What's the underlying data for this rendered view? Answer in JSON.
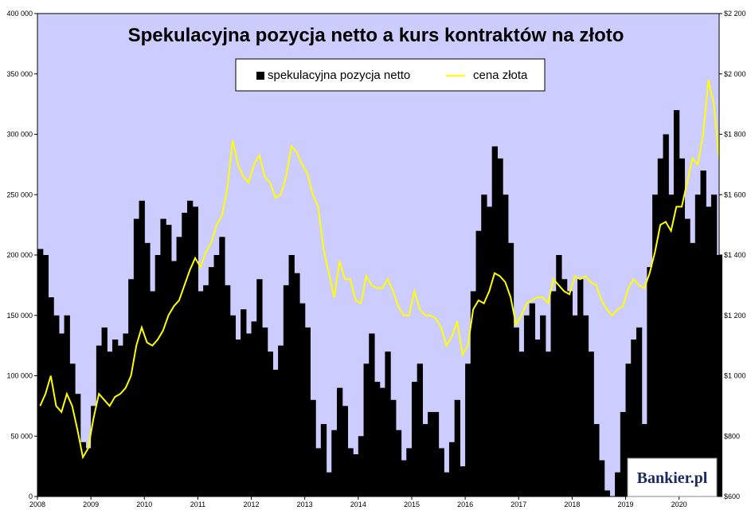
{
  "chart_data": {
    "type": "bar-line-combo",
    "title": "Spekulacyjna pozycja netto a kurs kontraktów na złoto",
    "series": [
      {
        "name": "spekulacyjna pozycja netto",
        "type": "bar",
        "axis": "left",
        "color": "#000000"
      },
      {
        "name": "cena złota",
        "type": "line",
        "axis": "right",
        "color": "#ffff00"
      }
    ],
    "legend_position": "top-center",
    "background_color": "#ccccff",
    "x_ticks": [
      "2008",
      "2009",
      "2010",
      "2011",
      "2012",
      "2013",
      "2014",
      "2015",
      "2016",
      "2017",
      "2018",
      "2019",
      "2020"
    ],
    "x_range": [
      2008,
      2020.75
    ],
    "y_left_range": [
      0,
      400000
    ],
    "y_left_ticks": [
      "0",
      "50 000",
      "100 000",
      "150 000",
      "200 000",
      "250 000",
      "300 000",
      "350 000",
      "400 000"
    ],
    "y_right_range": [
      600,
      2200
    ],
    "y_right_ticks": [
      "$600",
      "$800",
      "$1 000",
      "$1 200",
      "$1 400",
      "$1 600",
      "$1 800",
      "$2 000",
      "$2 200"
    ],
    "points": [
      [
        2008.0,
        205000,
        900
      ],
      [
        2008.1,
        200000,
        940
      ],
      [
        2008.2,
        165000,
        1000
      ],
      [
        2008.3,
        150000,
        900
      ],
      [
        2008.4,
        135000,
        880
      ],
      [
        2008.5,
        150000,
        940
      ],
      [
        2008.6,
        110000,
        900
      ],
      [
        2008.7,
        85000,
        820
      ],
      [
        2008.8,
        45000,
        730
      ],
      [
        2008.9,
        40000,
        760
      ],
      [
        2009.0,
        75000,
        860
      ],
      [
        2009.1,
        125000,
        940
      ],
      [
        2009.2,
        140000,
        920
      ],
      [
        2009.3,
        120000,
        900
      ],
      [
        2009.4,
        130000,
        930
      ],
      [
        2009.5,
        125000,
        940
      ],
      [
        2009.6,
        135000,
        960
      ],
      [
        2009.7,
        180000,
        1000
      ],
      [
        2009.8,
        230000,
        1100
      ],
      [
        2009.9,
        245000,
        1160
      ],
      [
        2010.0,
        210000,
        1110
      ],
      [
        2010.1,
        170000,
        1100
      ],
      [
        2010.2,
        200000,
        1120
      ],
      [
        2010.3,
        230000,
        1150
      ],
      [
        2010.4,
        225000,
        1200
      ],
      [
        2010.5,
        195000,
        1230
      ],
      [
        2010.6,
        215000,
        1250
      ],
      [
        2010.7,
        235000,
        1300
      ],
      [
        2010.8,
        245000,
        1350
      ],
      [
        2010.9,
        240000,
        1390
      ],
      [
        2011.0,
        170000,
        1360
      ],
      [
        2011.1,
        175000,
        1410
      ],
      [
        2011.2,
        190000,
        1440
      ],
      [
        2011.3,
        200000,
        1500
      ],
      [
        2011.4,
        215000,
        1530
      ],
      [
        2011.5,
        175000,
        1620
      ],
      [
        2011.6,
        150000,
        1780
      ],
      [
        2011.7,
        130000,
        1700
      ],
      [
        2011.8,
        155000,
        1660
      ],
      [
        2011.9,
        135000,
        1640
      ],
      [
        2012.0,
        145000,
        1700
      ],
      [
        2012.1,
        180000,
        1730
      ],
      [
        2012.2,
        140000,
        1660
      ],
      [
        2012.3,
        120000,
        1640
      ],
      [
        2012.4,
        105000,
        1590
      ],
      [
        2012.5,
        125000,
        1600
      ],
      [
        2012.6,
        175000,
        1660
      ],
      [
        2012.7,
        200000,
        1760
      ],
      [
        2012.8,
        185000,
        1740
      ],
      [
        2012.9,
        160000,
        1700
      ],
      [
        2013.0,
        140000,
        1670
      ],
      [
        2013.1,
        80000,
        1600
      ],
      [
        2013.2,
        40000,
        1560
      ],
      [
        2013.3,
        60000,
        1420
      ],
      [
        2013.4,
        20000,
        1340
      ],
      [
        2013.5,
        55000,
        1260
      ],
      [
        2013.6,
        90000,
        1380
      ],
      [
        2013.7,
        75000,
        1320
      ],
      [
        2013.8,
        40000,
        1320
      ],
      [
        2013.9,
        35000,
        1250
      ],
      [
        2014.0,
        50000,
        1240
      ],
      [
        2014.1,
        110000,
        1330
      ],
      [
        2014.2,
        135000,
        1300
      ],
      [
        2014.3,
        95000,
        1290
      ],
      [
        2014.4,
        90000,
        1290
      ],
      [
        2014.5,
        120000,
        1320
      ],
      [
        2014.6,
        80000,
        1280
      ],
      [
        2014.7,
        55000,
        1230
      ],
      [
        2014.8,
        30000,
        1200
      ],
      [
        2014.9,
        40000,
        1200
      ],
      [
        2015.0,
        95000,
        1280
      ],
      [
        2015.1,
        110000,
        1220
      ],
      [
        2015.2,
        60000,
        1200
      ],
      [
        2015.3,
        70000,
        1200
      ],
      [
        2015.4,
        70000,
        1190
      ],
      [
        2015.5,
        40000,
        1160
      ],
      [
        2015.6,
        20000,
        1100
      ],
      [
        2015.7,
        45000,
        1130
      ],
      [
        2015.8,
        80000,
        1180
      ],
      [
        2015.9,
        25000,
        1070
      ],
      [
        2016.0,
        110000,
        1100
      ],
      [
        2016.1,
        170000,
        1220
      ],
      [
        2016.2,
        220000,
        1250
      ],
      [
        2016.3,
        250000,
        1240
      ],
      [
        2016.4,
        240000,
        1280
      ],
      [
        2016.5,
        290000,
        1340
      ],
      [
        2016.6,
        280000,
        1330
      ],
      [
        2016.7,
        250000,
        1310
      ],
      [
        2016.8,
        210000,
        1260
      ],
      [
        2016.9,
        140000,
        1170
      ],
      [
        2017.0,
        120000,
        1200
      ],
      [
        2017.1,
        150000,
        1240
      ],
      [
        2017.2,
        160000,
        1250
      ],
      [
        2017.3,
        130000,
        1260
      ],
      [
        2017.4,
        150000,
        1260
      ],
      [
        2017.5,
        120000,
        1240
      ],
      [
        2017.6,
        170000,
        1320
      ],
      [
        2017.7,
        200000,
        1300
      ],
      [
        2017.8,
        180000,
        1280
      ],
      [
        2017.9,
        170000,
        1270
      ],
      [
        2018.0,
        150000,
        1330
      ],
      [
        2018.1,
        180000,
        1320
      ],
      [
        2018.2,
        150000,
        1330
      ],
      [
        2018.3,
        120000,
        1310
      ],
      [
        2018.4,
        60000,
        1300
      ],
      [
        2018.5,
        30000,
        1250
      ],
      [
        2018.6,
        5000,
        1220
      ],
      [
        2018.7,
        0,
        1200
      ],
      [
        2018.8,
        20000,
        1220
      ],
      [
        2018.9,
        70000,
        1230
      ],
      [
        2019.0,
        110000,
        1290
      ],
      [
        2019.1,
        130000,
        1320
      ],
      [
        2019.2,
        140000,
        1300
      ],
      [
        2019.3,
        60000,
        1290
      ],
      [
        2019.4,
        190000,
        1340
      ],
      [
        2019.5,
        250000,
        1410
      ],
      [
        2019.6,
        280000,
        1500
      ],
      [
        2019.7,
        300000,
        1510
      ],
      [
        2019.8,
        250000,
        1480
      ],
      [
        2019.9,
        320000,
        1560
      ],
      [
        2020.0,
        280000,
        1560
      ],
      [
        2020.1,
        230000,
        1640
      ],
      [
        2020.2,
        210000,
        1720
      ],
      [
        2020.3,
        250000,
        1700
      ],
      [
        2020.4,
        270000,
        1800
      ],
      [
        2020.5,
        240000,
        1980
      ],
      [
        2020.6,
        250000,
        1900
      ],
      [
        2020.7,
        200000,
        1720
      ]
    ]
  },
  "watermark": {
    "text": "Bankier.pl"
  }
}
